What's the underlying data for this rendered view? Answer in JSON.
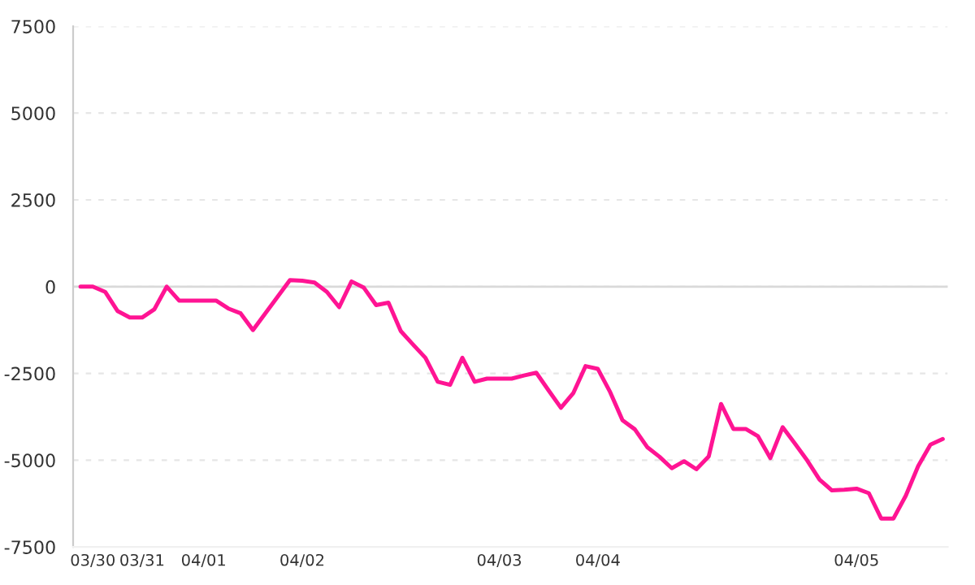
{
  "chart_data": {
    "type": "line",
    "color": "#ff1493",
    "categories": [
      null,
      "03/30",
      null,
      null,
      null,
      "03/31",
      null,
      null,
      null,
      null,
      "04/01",
      null,
      null,
      null,
      null,
      null,
      null,
      null,
      "04/02",
      null,
      null,
      null,
      null,
      null,
      null,
      null,
      null,
      null,
      null,
      null,
      null,
      null,
      null,
      null,
      "04/03",
      null,
      null,
      null,
      null,
      null,
      null,
      null,
      "04/04",
      null,
      null,
      null,
      null,
      null,
      null,
      null,
      null,
      null,
      null,
      null,
      null,
      null,
      null,
      null,
      null,
      null,
      null,
      null,
      null,
      "04/05",
      null,
      null,
      null,
      null,
      null,
      null,
      null
    ],
    "values": [
      0,
      0,
      -150,
      -700,
      -890,
      -890,
      -650,
      0,
      -400,
      -400,
      -400,
      -400,
      -630,
      -770,
      -1250,
      -770,
      -290,
      190,
      170,
      120,
      -150,
      -590,
      150,
      -30,
      -530,
      -460,
      -1280,
      -1670,
      -2050,
      -2740,
      -2830,
      -2050,
      -2740,
      -2650,
      -2650,
      -2650,
      -2560,
      -2480,
      -2990,
      -3490,
      -3070,
      -2290,
      -2370,
      -3040,
      -3850,
      -4110,
      -4620,
      -4900,
      -5230,
      -5030,
      -5260,
      -4890,
      -3380,
      -4100,
      -4100,
      -4310,
      -4940,
      -4050,
      -4520,
      -5010,
      -5560,
      -5870,
      -5850,
      -5820,
      -5950,
      -6680,
      -6680,
      -6020,
      -5170,
      -4550,
      -4390
    ],
    "ylim": [
      -7500,
      7500
    ],
    "yticks": [
      -7500,
      -5000,
      -2500,
      0,
      2500,
      5000,
      7500
    ],
    "grid": "y",
    "ref_lines": [
      {
        "axis": "y",
        "value": 0,
        "color": "#d9d9d9"
      }
    ],
    "line_style": "solid"
  }
}
